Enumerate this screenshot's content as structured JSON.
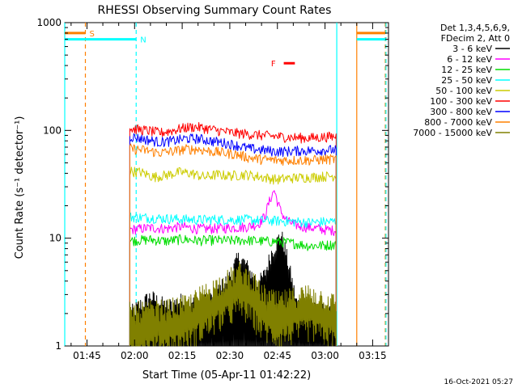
{
  "chart_data": {
    "type": "line",
    "title": "RHESSI Observing Summary Count Rates",
    "xlabel": "Start Time (05-Apr-11 01:42:22)",
    "ylabel": "Count Rate (s⁻¹ detector⁻¹)",
    "y_scale": "log",
    "ylim": [
      1,
      1000
    ],
    "xlim_minutes": [
      98,
      200
    ],
    "x_ticks": [
      {
        "label": "01:45",
        "minute": 105
      },
      {
        "label": "02:00",
        "minute": 120
      },
      {
        "label": "02:15",
        "minute": 135
      },
      {
        "label": "02:30",
        "minute": 150
      },
      {
        "label": "02:45",
        "minute": 165
      },
      {
        "label": "03:00",
        "minute": 180
      },
      {
        "label": "03:15",
        "minute": 195
      }
    ],
    "y_ticks": [
      {
        "label": "1",
        "value": 1
      },
      {
        "label": "10",
        "value": 10
      },
      {
        "label": "100",
        "value": 100
      },
      {
        "label": "1000",
        "value": 1000
      }
    ],
    "legend_header": [
      "Det 1,3,4,5,6,9,",
      "FDecim 2, Att 0"
    ],
    "legend_position": "right",
    "data_start_minute": 118.5,
    "data_end_minute": 183.5,
    "series": [
      {
        "name": "3 - 6 keV",
        "color": "#000000",
        "kind": "spiky",
        "points": [
          [
            118.5,
            1.8
          ],
          [
            125,
            2.6
          ],
          [
            130,
            2.1
          ],
          [
            135,
            2.4
          ],
          [
            140,
            2.2
          ],
          [
            145,
            2.6
          ],
          [
            150,
            4.0
          ],
          [
            152,
            5.5
          ],
          [
            153,
            6.0
          ],
          [
            155,
            5.2
          ],
          [
            157,
            4.1
          ],
          [
            159,
            3.4
          ],
          [
            161,
            4.2
          ],
          [
            163,
            6.5
          ],
          [
            165,
            8.5
          ],
          [
            166,
            10.0
          ],
          [
            167,
            8.2
          ],
          [
            169,
            4.4
          ],
          [
            171,
            2.3
          ],
          [
            175,
            2.0
          ],
          [
            180,
            1.9
          ],
          [
            183.5,
            1.7
          ]
        ]
      },
      {
        "name": "6 - 12 keV",
        "color": "#ff00ff",
        "kind": "line",
        "points": [
          [
            118.5,
            12.0
          ],
          [
            125,
            12.5
          ],
          [
            130,
            12.3
          ],
          [
            135,
            12.8
          ],
          [
            140,
            12.2
          ],
          [
            145,
            12.3
          ],
          [
            150,
            12.5
          ],
          [
            155,
            12.7
          ],
          [
            159,
            13.5
          ],
          [
            161,
            16.0
          ],
          [
            162,
            20.0
          ],
          [
            163,
            24.0
          ],
          [
            164,
            28.0
          ],
          [
            165,
            22.0
          ],
          [
            166,
            18.0
          ],
          [
            167,
            16.0
          ],
          [
            168,
            14.5
          ],
          [
            170,
            13.5
          ],
          [
            173,
            12.8
          ],
          [
            176,
            12.5
          ],
          [
            180,
            12.0
          ],
          [
            183.5,
            11.8
          ]
        ]
      },
      {
        "name": "12 - 25 keV",
        "color": "#00dd00",
        "kind": "line",
        "points": [
          [
            118.5,
            9.5
          ],
          [
            125,
            9.7
          ],
          [
            130,
            9.4
          ],
          [
            135,
            9.8
          ],
          [
            140,
            9.5
          ],
          [
            145,
            9.6
          ],
          [
            150,
            9.5
          ],
          [
            155,
            9.6
          ],
          [
            160,
            9.4
          ],
          [
            165,
            9.3
          ],
          [
            170,
            9.0
          ],
          [
            175,
            8.5
          ],
          [
            180,
            8.6
          ],
          [
            183.5,
            8.8
          ]
        ]
      },
      {
        "name": "25 - 50 keV",
        "color": "#00ffff",
        "kind": "line",
        "points": [
          [
            118.5,
            15.8
          ],
          [
            125,
            15.5
          ],
          [
            130,
            15.2
          ],
          [
            135,
            15.0
          ],
          [
            140,
            14.8
          ],
          [
            145,
            15.0
          ],
          [
            150,
            14.8
          ],
          [
            155,
            14.9
          ],
          [
            160,
            14.6
          ],
          [
            165,
            14.5
          ],
          [
            170,
            14.3
          ],
          [
            175,
            14.0
          ],
          [
            180,
            14.2
          ],
          [
            183.5,
            14.3
          ]
        ]
      },
      {
        "name": "50 - 100 keV",
        "color": "#cccc00",
        "kind": "line",
        "points": [
          [
            118.5,
            42.0
          ],
          [
            122,
            41.0
          ],
          [
            126,
            37.0
          ],
          [
            130,
            38.5
          ],
          [
            134,
            41.0
          ],
          [
            138,
            40.0
          ],
          [
            142,
            37.0
          ],
          [
            146,
            39.0
          ],
          [
            150,
            38.0
          ],
          [
            155,
            39.0
          ],
          [
            160,
            37.0
          ],
          [
            165,
            35.0
          ],
          [
            168,
            36.0
          ],
          [
            172,
            36.5
          ],
          [
            176,
            37.0
          ],
          [
            180,
            37.5
          ],
          [
            183.5,
            38.0
          ]
        ]
      },
      {
        "name": "100 - 300 keV",
        "color": "#ff0000",
        "kind": "line",
        "points": [
          [
            118.5,
            104
          ],
          [
            124,
            100
          ],
          [
            128,
            95
          ],
          [
            132,
            100
          ],
          [
            136,
            106
          ],
          [
            139,
            108
          ],
          [
            143,
            104
          ],
          [
            147,
            99
          ],
          [
            151,
            95
          ],
          [
            155,
            93
          ],
          [
            160,
            90
          ],
          [
            165,
            88
          ],
          [
            170,
            86
          ],
          [
            175,
            85
          ],
          [
            180,
            87
          ],
          [
            183.5,
            88
          ]
        ]
      },
      {
        "name": "300 - 800 keV",
        "color": "#0000ff",
        "kind": "line",
        "points": [
          [
            118.5,
            88
          ],
          [
            124,
            82
          ],
          [
            128,
            78
          ],
          [
            132,
            80
          ],
          [
            136,
            84
          ],
          [
            140,
            84
          ],
          [
            144,
            80
          ],
          [
            148,
            77
          ],
          [
            152,
            73
          ],
          [
            156,
            68
          ],
          [
            160,
            66
          ],
          [
            164,
            64
          ],
          [
            168,
            64
          ],
          [
            172,
            65
          ],
          [
            176,
            65
          ],
          [
            180,
            66
          ],
          [
            183.5,
            66
          ]
        ]
      },
      {
        "name": "800 - 7000 keV",
        "color": "#ff8000",
        "kind": "line",
        "points": [
          [
            118.5,
            68
          ],
          [
            124,
            65
          ],
          [
            128,
            62
          ],
          [
            132,
            64
          ],
          [
            136,
            67
          ],
          [
            140,
            67
          ],
          [
            144,
            64
          ],
          [
            148,
            62
          ],
          [
            152,
            60
          ],
          [
            156,
            56
          ],
          [
            160,
            54
          ],
          [
            164,
            53
          ],
          [
            168,
            53
          ],
          [
            172,
            53
          ],
          [
            176,
            53
          ],
          [
            180,
            54
          ],
          [
            183.5,
            54
          ]
        ]
      },
      {
        "name": "7000 - 15000 keV",
        "color": "#808000",
        "kind": "noisy",
        "points": [
          [
            118.5,
            1.6
          ],
          [
            130,
            1.7
          ],
          [
            137,
            1.9
          ],
          [
            142,
            2.4
          ],
          [
            145,
            2.7
          ],
          [
            150,
            3.3
          ],
          [
            153,
            3.8
          ],
          [
            157,
            3.2
          ],
          [
            160,
            2.4
          ],
          [
            165,
            2.0
          ],
          [
            170,
            2.2
          ],
          [
            175,
            2.4
          ],
          [
            180,
            2.1
          ],
          [
            183.5,
            1.9
          ]
        ]
      }
    ],
    "bars": [
      {
        "label": "S",
        "color": "#ff8000",
        "y": 800,
        "x_start": 98,
        "x_end": 104.5
      },
      {
        "label": "S",
        "color": "#ff8000",
        "y": 800,
        "x_start": 190,
        "x_end": 199
      },
      {
        "label": "N",
        "color": "#00ffff",
        "y": 700,
        "x_start": 98,
        "x_end": 120.5
      },
      {
        "label": "N",
        "color": "#00ffff",
        "y": 700,
        "x_start": 190,
        "x_end": 199
      },
      {
        "label": "F",
        "color": "#ff0000",
        "y": 420,
        "x_start": 167,
        "x_end": 170.5
      }
    ],
    "vertical_markers": [
      {
        "color": "#00ffff",
        "style": "solid",
        "minute": 98
      },
      {
        "color": "#ff8000",
        "style": "dashed",
        "minute": 104.5
      },
      {
        "color": "#00ffff",
        "style": "dashed",
        "minute": 120.5
      },
      {
        "color": "#00ffff",
        "style": "solid",
        "minute": 183.7
      },
      {
        "color": "#ff8000",
        "style": "solid",
        "minute": 190
      },
      {
        "color": "#ff8000",
        "style": "dashed",
        "minute": 199
      },
      {
        "color": "#00ffff",
        "style": "dashed",
        "minute": 199.2
      }
    ]
  },
  "timestamp": "16-Oct-2021 05:27"
}
